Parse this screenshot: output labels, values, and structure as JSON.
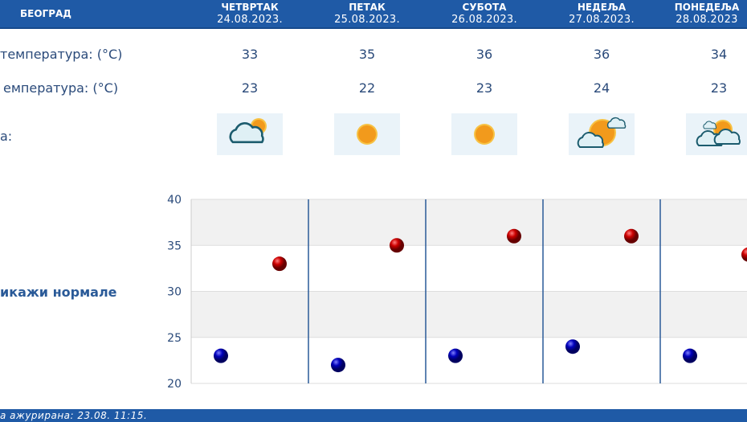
{
  "header": {
    "city": "БЕОГРАД",
    "days": [
      {
        "name": "ЧЕТВРТАК",
        "date": "24.08.2023.",
        "max": "33",
        "min": "23",
        "icon": "partly-cloudy-rain-icon"
      },
      {
        "name": "ПЕТАК",
        "date": "25.08.2023.",
        "max": "35",
        "min": "22",
        "icon": "sun-icon"
      },
      {
        "name": "СУБОТА",
        "date": "26.08.2023.",
        "max": "36",
        "min": "23",
        "icon": "sun-icon"
      },
      {
        "name": "НЕДЕЉА",
        "date": "27.08.2023.",
        "max": "36",
        "min": "24",
        "icon": "sun-with-clouds-icon"
      },
      {
        "name": "ПОНЕДЕЉА",
        "date": "28.08.2023",
        "max": "34",
        "min": "23",
        "icon": "partly-cloudy-icon"
      }
    ]
  },
  "rows": {
    "max_label": "температура: (°C)",
    "min_label": "емпература: (°C)",
    "icon_label": "а:"
  },
  "show_normals": "икажи нормале",
  "footer": "а ажурирана:  23.08. 11:15.",
  "colors": {
    "header": "#1f5aa6",
    "max_point": "#cc0000",
    "min_point": "#0000bb"
  },
  "chart_data": {
    "type": "scatter",
    "ylim": [
      20,
      40
    ],
    "yticks": [
      "20",
      "25",
      "30",
      "35",
      "40"
    ],
    "series": [
      {
        "values": [
          33,
          35,
          36,
          36,
          34
        ]
      },
      {
        "values": [
          23,
          22,
          23,
          24,
          23
        ]
      }
    ]
  }
}
